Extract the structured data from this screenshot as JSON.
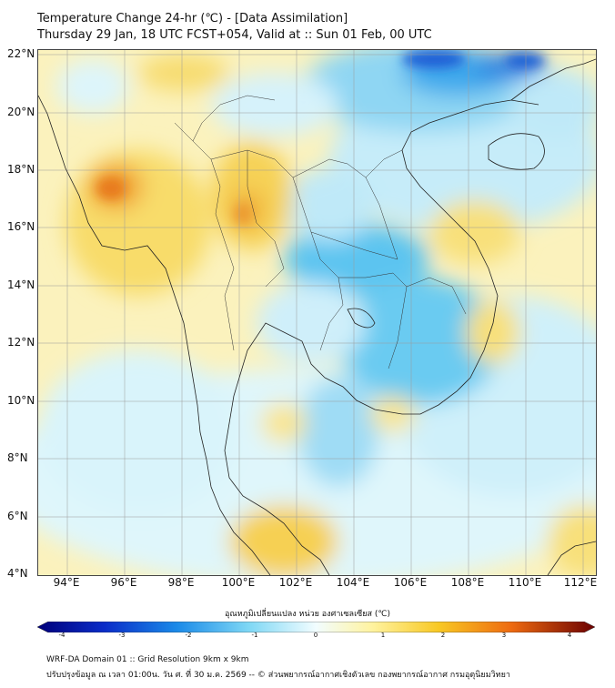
{
  "title": {
    "line1": "Temperature Change 24-hr (℃) - [Data Assimilation]",
    "line2": "Thursday 29 Jan, 18 UTC FCST+054, Valid at :: Sun 01 Feb, 00 UTC"
  },
  "map": {
    "lat_labels": [
      "22°N",
      "20°N",
      "18°N",
      "16°N",
      "14°N",
      "12°N",
      "10°N",
      "8°N",
      "6°N",
      "4°N"
    ],
    "lon_labels": [
      "94°E",
      "96°E",
      "98°E",
      "100°E",
      "102°E",
      "104°E",
      "106°E",
      "108°E",
      "110°E",
      "112°E"
    ],
    "extent": {
      "lon": [
        93,
        112.5
      ],
      "lat": [
        4,
        22.2
      ]
    }
  },
  "colorbar": {
    "title": "อุณหภูมิเปลี่ยนแปลง หน่วย องศาเซลเซียส (℃)",
    "ticks": [
      "-4",
      "-3",
      "-2",
      "-1",
      "0",
      "1",
      "2",
      "3",
      "4"
    ],
    "range": [
      -4,
      4
    ],
    "colors": [
      "#00007a",
      "#0a3cd8",
      "#2a9df0",
      "#7fd8f5",
      "#e8fbff",
      "#fff7b0",
      "#f7c623",
      "#ef7a10",
      "#a0100a",
      "#6b0000"
    ]
  },
  "footer": {
    "line1": "WRF-DA Domain 01 :: Grid Resolution 9km x 9km",
    "line2": "ปรับปรุงข้อมูล ณ เวลา 01:00น. วัน ศ. ที่ 30 ม.ค. 2569 -- © ส่วนพยากรณ์อากาศเชิงตัวเลข กองพยากรณ์อากาศ กรมอุตุนิยมวิทยา"
  }
}
